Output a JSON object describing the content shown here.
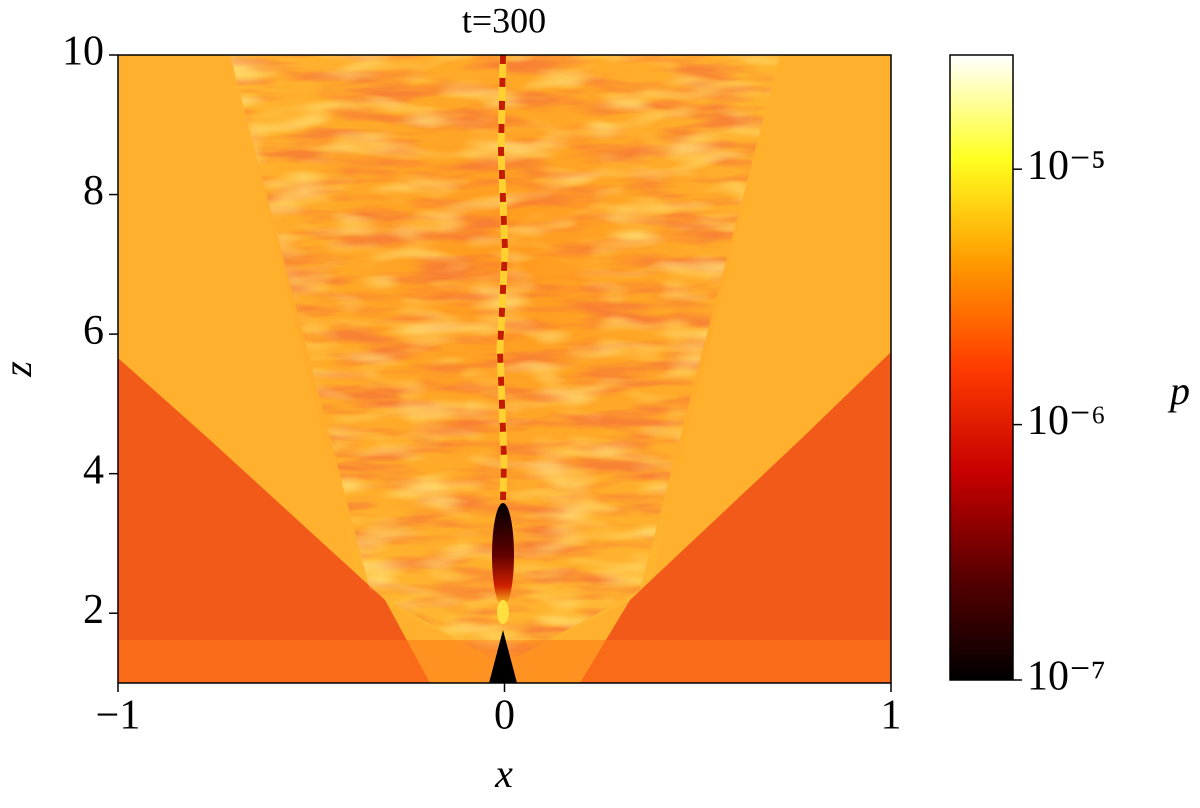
{
  "chart_data": {
    "type": "heatmap",
    "title": "t=300",
    "x_label": "x",
    "y_label": "z",
    "xlim": [
      -1,
      1
    ],
    "ylim": [
      1,
      10
    ],
    "xticks": [
      {
        "value": -1,
        "label": "−1"
      },
      0,
      1
    ],
    "yticks": [
      2,
      4,
      6,
      8,
      10
    ],
    "colorbar": {
      "label": "p",
      "log_scale": true,
      "clim": [
        1e-07,
        2.8e-05
      ],
      "ticks": [
        {
          "value": 1e-07,
          "label": "10⁻⁷"
        },
        {
          "value": 1e-06,
          "label": "10⁻⁶"
        },
        {
          "value": 1e-05,
          "label": "10⁻⁵"
        }
      ],
      "colormap": [
        "#000000",
        "#5a0000",
        "#c80000",
        "#ff3c00",
        "#ff9a00",
        "#ffff20",
        "#ffffff"
      ]
    }
  }
}
